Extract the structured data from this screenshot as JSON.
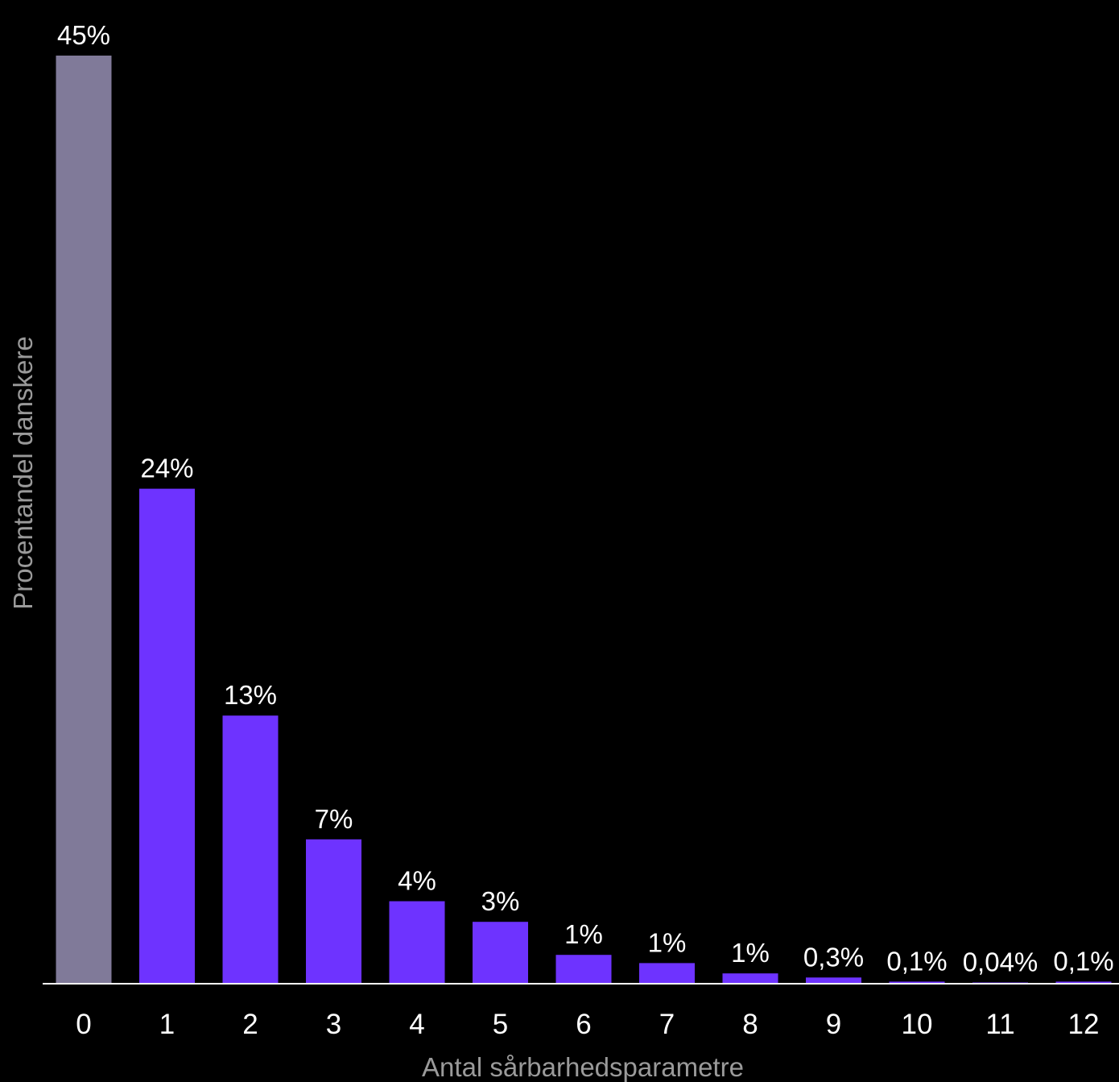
{
  "chart_data": {
    "type": "bar",
    "xlabel": "Antal sårbarhedsparametre",
    "ylabel": "Procentandel danskere",
    "categories": [
      "0",
      "1",
      "2",
      "3",
      "4",
      "5",
      "6",
      "7",
      "8",
      "9",
      "10",
      "11",
      "12"
    ],
    "values": [
      45,
      24,
      13,
      7,
      4,
      3,
      1.4,
      1,
      0.5,
      0.3,
      0.1,
      0.04,
      0.1
    ],
    "data_labels": [
      "45%",
      "24%",
      "13%",
      "7%",
      "4%",
      "3%",
      "1%",
      "1%",
      "1%",
      "0,3%",
      "0,1%",
      "0,04%",
      "0,1%"
    ],
    "ylim": [
      0,
      45
    ],
    "grid": false,
    "legend": "none",
    "colors": {
      "highlight": "#807a99",
      "default": "#6e33ff",
      "axis": "#ffffff",
      "text": "#ffffff",
      "axis_title": "#9a9a9a",
      "background": "#000000"
    },
    "highlight_index": 0
  }
}
